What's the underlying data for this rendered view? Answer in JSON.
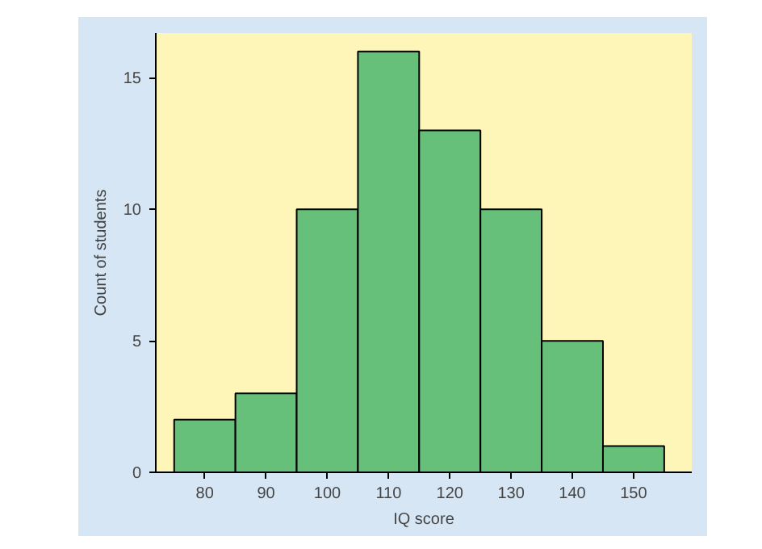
{
  "chart_data": {
    "type": "histogram",
    "xlabel": "IQ score",
    "ylabel": "Count of students",
    "bins": [
      75,
      85,
      95,
      105,
      115,
      125,
      135,
      145,
      155
    ],
    "values": [
      2,
      3,
      10,
      16,
      13,
      10,
      5,
      1
    ],
    "color": "#66c07a",
    "xlim": [
      72,
      159.5
    ],
    "ylim": [
      0,
      16.7
    ],
    "xticks": [
      80,
      90,
      100,
      110,
      120,
      130,
      140,
      150
    ],
    "yticks": [
      0,
      5,
      10,
      15
    ]
  }
}
